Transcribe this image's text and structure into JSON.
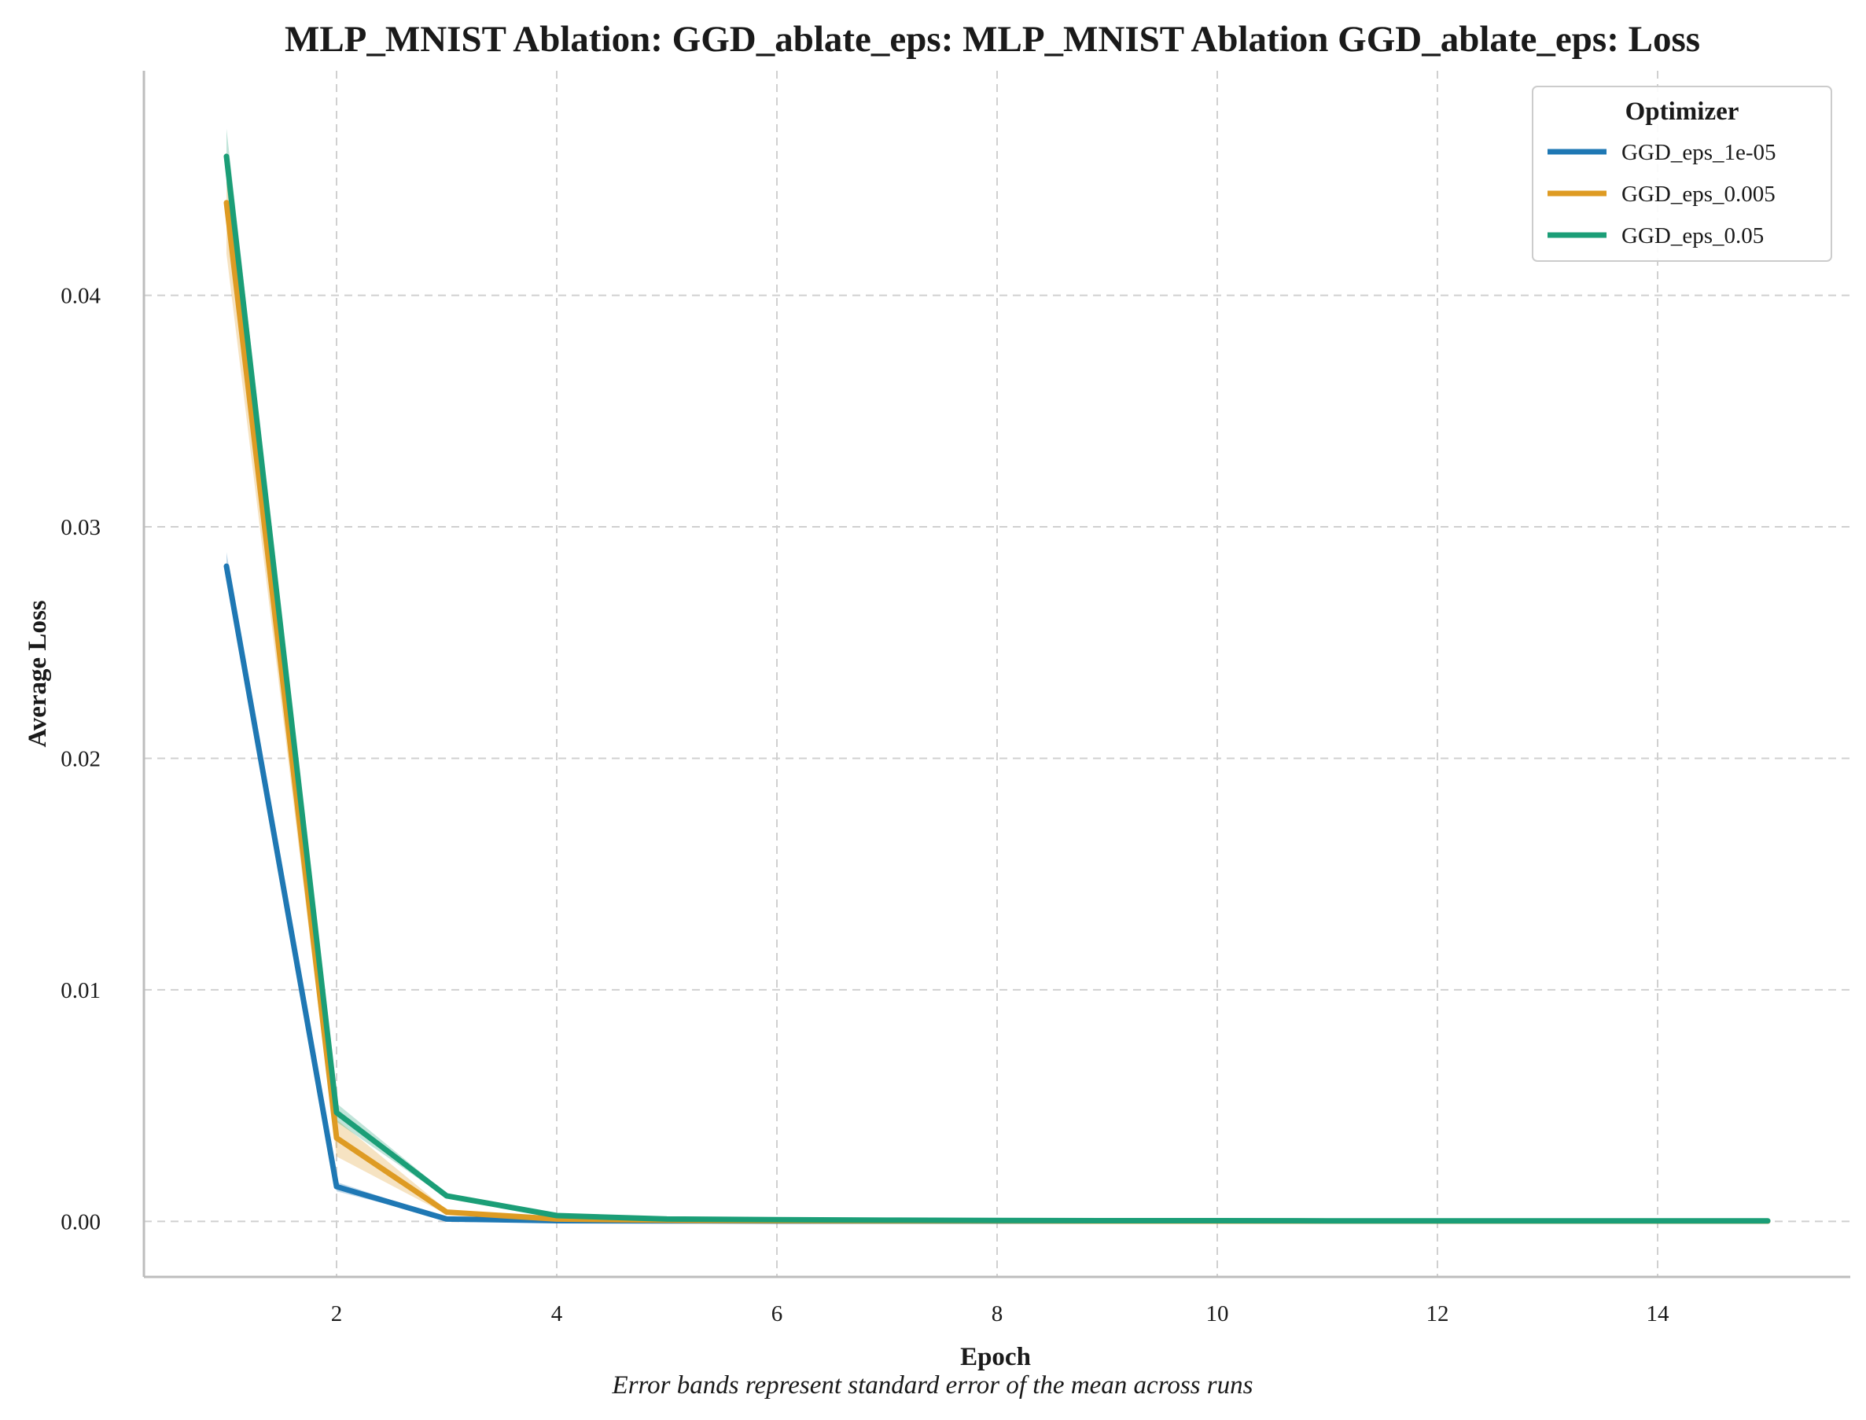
{
  "chart_data": {
    "type": "line",
    "title": "MLP_MNIST Ablation: GGD_ablate_eps: MLP_MNIST Ablation GGD_ablate_eps: Loss",
    "xlabel": "Epoch",
    "ylabel": "Average Loss",
    "caption": "Error bands represent standard error of the mean across runs",
    "xlim": [
      0.25,
      15.75
    ],
    "ylim": [
      -0.0024,
      0.0497
    ],
    "xticks": [
      2,
      4,
      6,
      8,
      10,
      12,
      14
    ],
    "yticks": [
      0.0,
      0.01,
      0.02,
      0.03,
      0.04
    ],
    "ytick_labels": [
      "0.00",
      "0.01",
      "0.02",
      "0.03",
      "0.04"
    ],
    "grid": true,
    "legend": {
      "title": "Optimizer",
      "placement": "top-right"
    },
    "x": [
      1,
      2,
      3,
      4,
      5,
      6,
      7,
      8,
      9,
      10,
      11,
      12,
      13,
      14,
      15
    ],
    "series": [
      {
        "name": "GGD_eps_1e-05",
        "color": "#1f78b4",
        "values": [
          0.0283,
          0.0015,
          0.0001,
          3e-05,
          2e-05,
          1e-05,
          1e-05,
          1e-05,
          1e-05,
          1e-05,
          1e-05,
          1e-05,
          1e-05,
          1e-05,
          1e-05
        ],
        "sem": [
          0.0006,
          0.0002,
          3e-05,
          1e-05,
          1e-05,
          0,
          0,
          0,
          0,
          0,
          0,
          0,
          0,
          0,
          0
        ]
      },
      {
        "name": "GGD_eps_0.005",
        "color": "#de9b23",
        "values": [
          0.044,
          0.0036,
          0.0004,
          0.0001,
          5e-05,
          3e-05,
          2e-05,
          2e-05,
          1e-05,
          1e-05,
          1e-05,
          1e-05,
          1e-05,
          1e-05,
          1e-05
        ],
        "sem": [
          0.0022,
          0.0008,
          0.0001,
          3e-05,
          1e-05,
          0,
          0,
          0,
          0,
          0,
          0,
          0,
          0,
          0,
          0
        ]
      },
      {
        "name": "GGD_eps_0.05",
        "color": "#1b9e77",
        "values": [
          0.046,
          0.0047,
          0.0011,
          0.00025,
          0.0001,
          7e-05,
          5e-05,
          4e-05,
          3e-05,
          3e-05,
          2e-05,
          2e-05,
          2e-05,
          2e-05,
          2e-05
        ],
        "sem": [
          0.0012,
          0.0004,
          0.0001,
          3e-05,
          1e-05,
          0,
          0,
          0,
          0,
          0,
          0,
          0,
          0,
          0,
          0
        ]
      }
    ]
  }
}
